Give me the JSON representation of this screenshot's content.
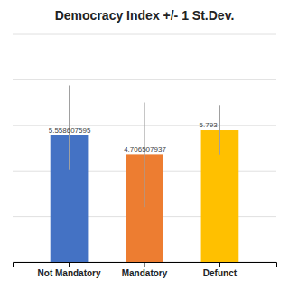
{
  "chart_data": {
    "type": "bar",
    "title": "Democracy Index +/- 1 St.Dev.",
    "categories": [
      "Not Mandatory",
      "Mandatory",
      "Defunct"
    ],
    "values": [
      5.558607595,
      4.706507937,
      5.793
    ],
    "errors_upper": [
      2.2,
      2.3,
      1.1
    ],
    "errors_lower": [
      1.5,
      2.3,
      1.1
    ],
    "colors": [
      "#4472c4",
      "#ed7d31",
      "#ffc000"
    ],
    "ylim": [
      0,
      10
    ],
    "yticks": [
      0,
      2,
      4,
      6,
      8,
      10
    ],
    "grid": true,
    "data_labels": true,
    "tick_labels": "x"
  }
}
